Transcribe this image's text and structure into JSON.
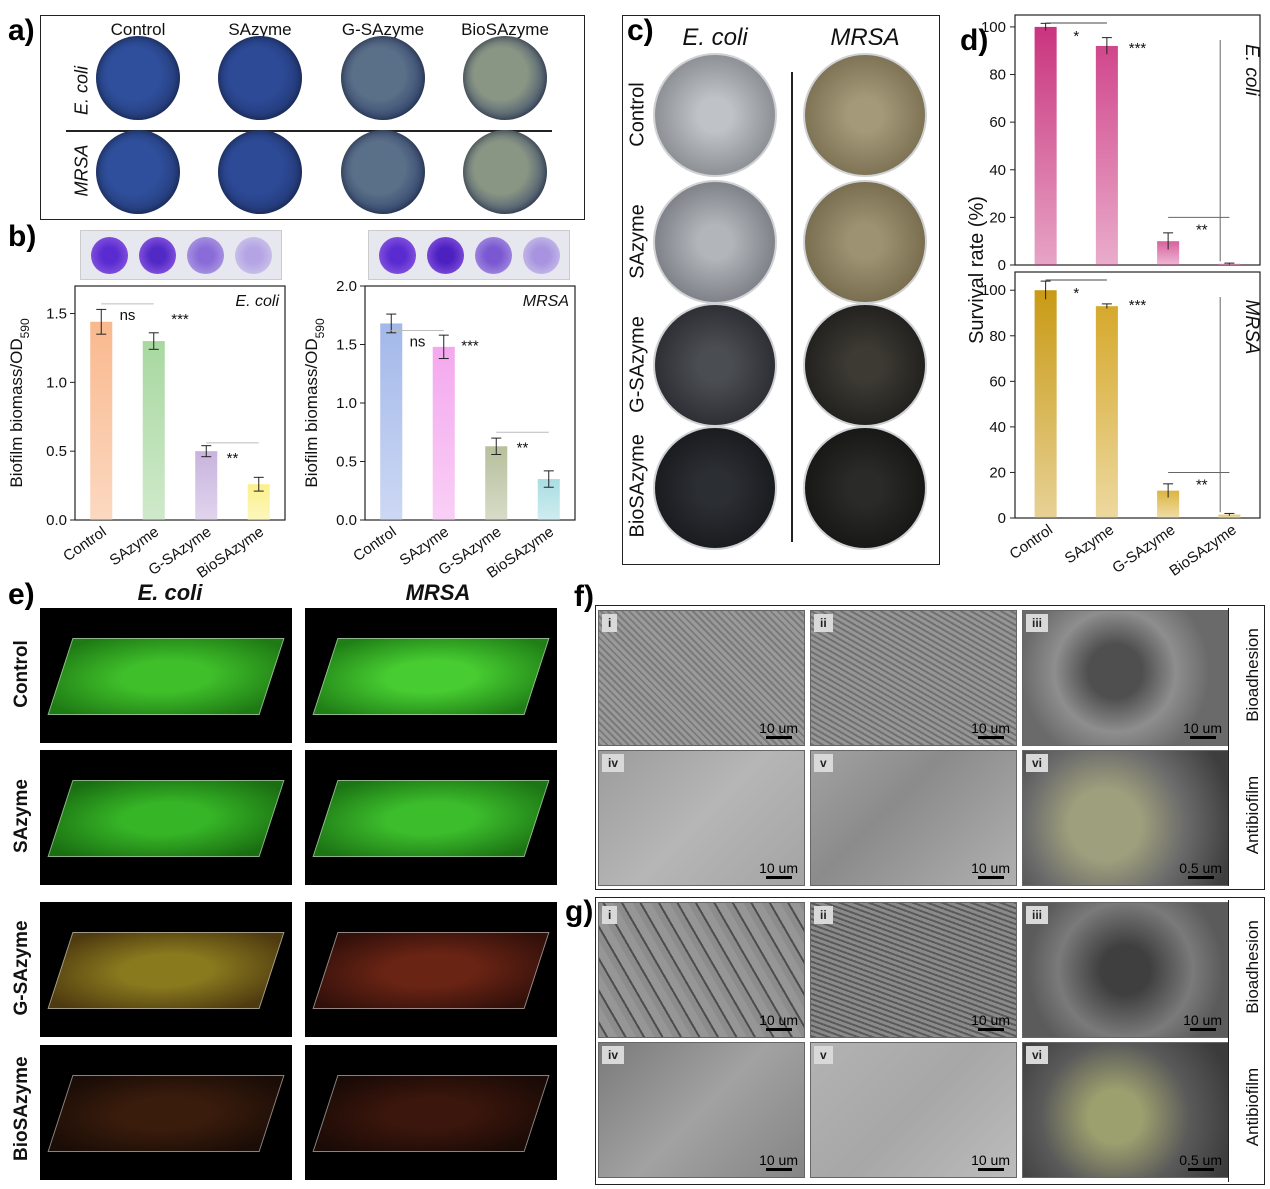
{
  "panels": {
    "a": "a)",
    "b": "b)",
    "c": "c)",
    "d": "d)",
    "e": "e)",
    "f": "f)",
    "g": "g)"
  },
  "panel_a": {
    "columns": [
      "Control",
      "SAzyme",
      "G-SAzyme",
      "BioSAzyme"
    ],
    "rows": [
      "E. coli",
      "MRSA"
    ],
    "colors": [
      "#2f4f9c",
      "#2d4a97",
      "#5a6f88",
      "#8a9684"
    ]
  },
  "panel_c": {
    "columns": [
      "E. coli",
      "MRSA"
    ],
    "rows": [
      "Control",
      "SAzyme",
      "G-SAzyme",
      "BioSAzyme"
    ]
  },
  "panel_e": {
    "columns": [
      "E. coli",
      "MRSA"
    ],
    "rows": [
      "Control",
      "SAzyme",
      "G-SAzyme",
      "BioSAzyme"
    ]
  },
  "panel_f": {
    "rows": [
      "Bioadhesion",
      "Antibiofilm"
    ],
    "tiles": [
      "i",
      "ii",
      "iii",
      "iv",
      "v",
      "vi"
    ],
    "scales": [
      "10 um",
      "10 um",
      "10 um",
      "10 um",
      "10 um",
      "0.5 um"
    ]
  },
  "panel_g": {
    "rows": [
      "Bioadhesion",
      "Antibiofilm"
    ],
    "tiles": [
      "i",
      "ii",
      "iii",
      "iv",
      "v",
      "vi"
    ],
    "scales": [
      "10 um",
      "10 um",
      "10 um",
      "10 um",
      "10 um",
      "0.5 um"
    ]
  },
  "chart_data": [
    {
      "id": "b-ecoli",
      "type": "bar",
      "categories": [
        "Control",
        "SAzyme",
        "G-SAzyme",
        "BioSAzyme"
      ],
      "values": [
        1.44,
        1.3,
        0.5,
        0.26
      ],
      "errors": [
        0.09,
        0.06,
        0.04,
        0.05
      ],
      "colors": [
        "#f9b98e",
        "#a8d8a0",
        "#c8b3de",
        "#fbf08a"
      ],
      "ylabel": "Biofilm biomass/OD",
      "ylabel_sub": "590",
      "ylim": [
        0,
        1.7
      ],
      "yticks": [
        "0.0",
        "0.5",
        "1.0",
        "1.5"
      ],
      "legend": "E. coli",
      "annotations": [
        "ns",
        "***",
        "**"
      ]
    },
    {
      "id": "b-mrsa",
      "type": "bar",
      "categories": [
        "Control",
        "SAzyme",
        "G-SAzyme",
        "BioSAzyme"
      ],
      "values": [
        1.68,
        1.48,
        0.63,
        0.35
      ],
      "errors": [
        0.08,
        0.1,
        0.07,
        0.07
      ],
      "colors": [
        "#a3b8ea",
        "#f4a8ee",
        "#b7bf9c",
        "#a9dde3"
      ],
      "ylabel": "Biofilm biomass/OD",
      "ylabel_sub": "590",
      "ylim": [
        0,
        2.0
      ],
      "yticks": [
        "0.0",
        "0.5",
        "1.0",
        "1.5",
        "2.0"
      ],
      "legend": "MRSA",
      "annotations": [
        "ns",
        "***",
        "**"
      ]
    },
    {
      "id": "d-ecoli",
      "type": "bar",
      "categories": [
        "Control",
        "SAzyme",
        "G-SAzyme",
        "BioSAzyme"
      ],
      "values": [
        100,
        92,
        10,
        0.5
      ],
      "errors": [
        1.5,
        3.5,
        3.5,
        0.3
      ],
      "colors": [
        "#c9347e",
        "#d0478c",
        "#d7629d",
        "#e48bb7"
      ],
      "ylim": [
        0,
        105
      ],
      "yticks": [
        "0",
        "20",
        "40",
        "60",
        "80",
        "100"
      ],
      "legend": "E. coli",
      "annotations": [
        "*",
        "***",
        "**"
      ]
    },
    {
      "id": "d-mrsa",
      "type": "bar",
      "categories": [
        "Control",
        "SAzyme",
        "G-SAzyme",
        "BioSAzyme"
      ],
      "values": [
        100,
        93,
        12,
        1.5
      ],
      "errors": [
        4.0,
        1.0,
        3.0,
        0.5
      ],
      "colors": [
        "#c99a14",
        "#d6a92c",
        "#dcb43f",
        "#e5c565"
      ],
      "ylim": [
        0,
        108
      ],
      "yticks": [
        "0",
        "20",
        "40",
        "60",
        "80",
        "100"
      ],
      "ylabel": "Survival rate (%)",
      "legend": "MRSA",
      "annotations": [
        "*",
        "***",
        "**"
      ]
    }
  ]
}
